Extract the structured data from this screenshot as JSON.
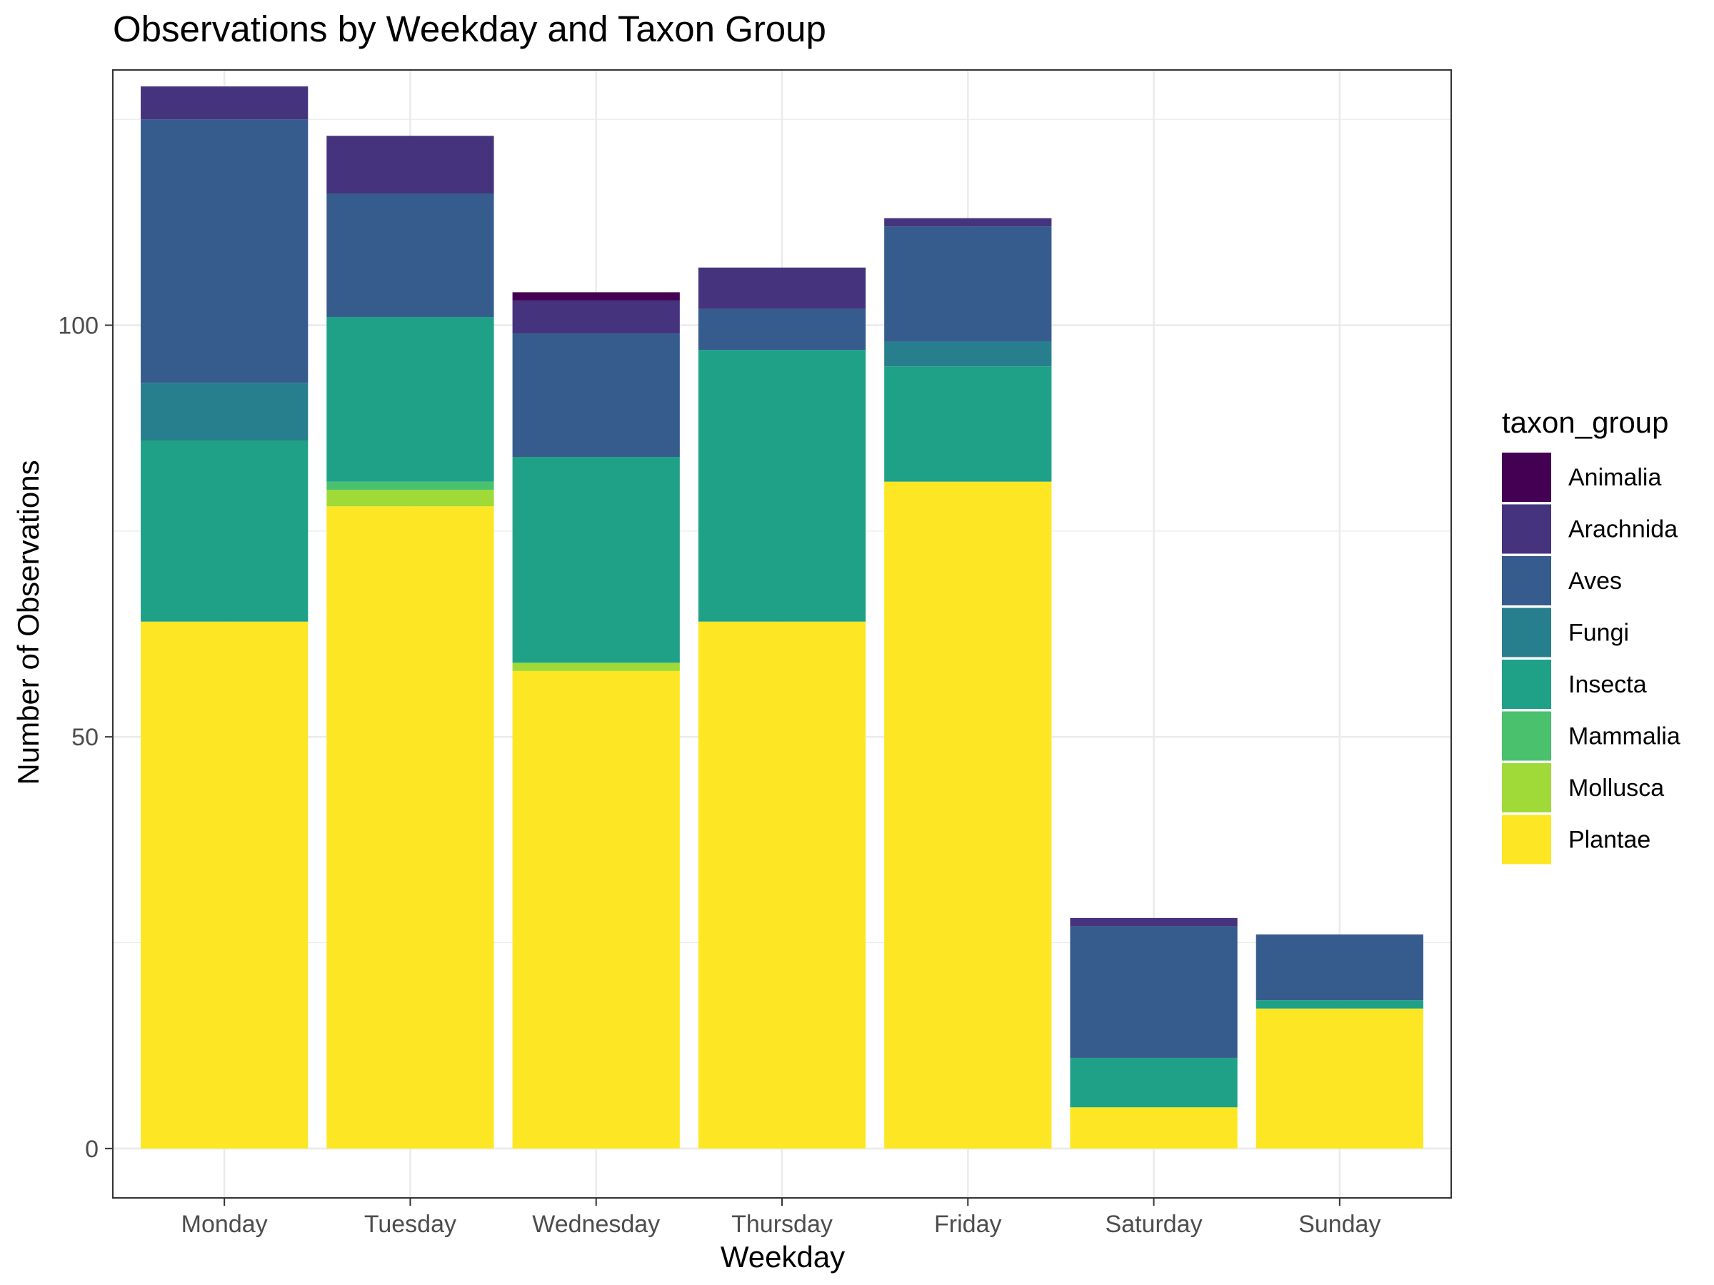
{
  "chart_data": {
    "type": "bar",
    "stacked": true,
    "title": "Observations by Weekday and Taxon Group",
    "xlabel": "Weekday",
    "ylabel": "Number of Observations",
    "ylim": [
      -6,
      131
    ],
    "yticks": [
      0,
      50,
      100
    ],
    "grid": true,
    "legend_position": "right",
    "legend_title": "taxon_group",
    "categories": [
      "Monday",
      "Tuesday",
      "Wednesday",
      "Thursday",
      "Friday",
      "Saturday",
      "Sunday"
    ],
    "series": [
      {
        "name": "Plantae",
        "color": "#FDE725",
        "values": [
          64,
          78,
          58,
          64,
          81,
          5,
          17
        ]
      },
      {
        "name": "Mollusca",
        "color": "#A0DA39",
        "values": [
          0,
          2,
          1,
          0,
          0,
          0,
          0
        ]
      },
      {
        "name": "Mammalia",
        "color": "#4AC16D",
        "values": [
          0,
          1,
          0,
          0,
          0,
          0,
          0
        ]
      },
      {
        "name": "Insecta",
        "color": "#1FA187",
        "values": [
          22,
          20,
          25,
          33,
          14,
          6,
          1
        ]
      },
      {
        "name": "Fungi",
        "color": "#277F8E",
        "values": [
          7,
          0,
          0,
          0,
          3,
          0,
          0
        ]
      },
      {
        "name": "Aves",
        "color": "#365C8D",
        "values": [
          32,
          15,
          15,
          5,
          14,
          16,
          8
        ]
      },
      {
        "name": "Arachnida",
        "color": "#46337E",
        "values": [
          4,
          7,
          4,
          5,
          1,
          1,
          0
        ]
      },
      {
        "name": "Animalia",
        "color": "#440154",
        "values": [
          0,
          0,
          1,
          0,
          0,
          0,
          0
        ]
      }
    ],
    "legend_order": [
      "Animalia",
      "Arachnida",
      "Aves",
      "Fungi",
      "Insecta",
      "Mammalia",
      "Mollusca",
      "Plantae"
    ]
  }
}
